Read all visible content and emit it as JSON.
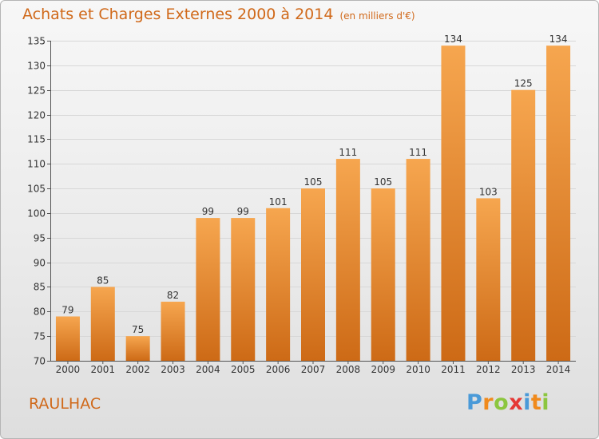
{
  "header": {
    "title": "Achats et Charges Externes 2000 à 2014",
    "unit": "(en milliers d'€)"
  },
  "footer": {
    "commune": "RAULHAC",
    "logo_letters": [
      "P",
      "r",
      "o",
      "x",
      "i",
      "t",
      "i"
    ],
    "logo_colors": [
      "#4a9ad8",
      "#f08a1c",
      "#8cc63f",
      "#e53935",
      "#4a9ad8",
      "#f08a1c",
      "#8cc63f"
    ]
  },
  "colors": {
    "bar_top": "#f6a64f",
    "bar_bottom": "#cd6a16",
    "title": "#d0691a",
    "grid": "#d7d7d7"
  },
  "chart_data": {
    "type": "bar",
    "title": "Achats et Charges Externes 2000 à 2014",
    "subtitle": "(en milliers d'€)",
    "categories": [
      "2000",
      "2001",
      "2002",
      "2003",
      "2004",
      "2005",
      "2006",
      "2007",
      "2008",
      "2009",
      "2010",
      "2011",
      "2012",
      "2013",
      "2014"
    ],
    "values": [
      79,
      85,
      75,
      82,
      99,
      99,
      101,
      105,
      111,
      105,
      111,
      134,
      103,
      125,
      134
    ],
    "ylim": [
      70,
      135
    ],
    "yticks": [
      70,
      75,
      80,
      85,
      90,
      95,
      100,
      105,
      110,
      115,
      120,
      125,
      130,
      135
    ],
    "grid": true,
    "data_labels": true
  }
}
